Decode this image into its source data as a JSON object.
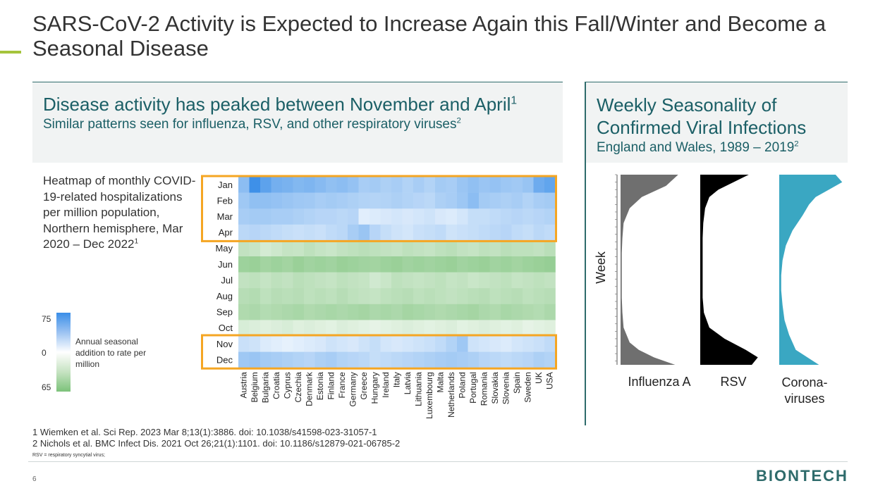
{
  "title": "SARS-CoV-2 Activity is Expected to Increase Again this Fall/Winter and Become a Seasonal Disease",
  "left_panel": {
    "heading": "Disease activity has peaked between November and April",
    "heading_sup": "1",
    "subheading": "Similar patterns seen for influenza, RSV, and other respiratory viruses",
    "subheading_sup": "2"
  },
  "right_panel": {
    "heading": "Weekly Seasonality of Confirmed Viral Infections",
    "subheading": "England and Wales, 1989 – 2019",
    "subheading_sup": "2"
  },
  "heatmap_description": {
    "text": "Heatmap of monthly COVID-19-related hospitalizations per million population, Northern hemisphere, Mar 2020 – Dec 2022",
    "sup": "1"
  },
  "legend": {
    "max_label": "75",
    "mid_label": "0",
    "min_label": "65",
    "label": "Annual seasonal addition to rate per million",
    "colors": {
      "high": "#3a8ee8",
      "mid": "#ffffff",
      "low": "#7cc27a"
    }
  },
  "chart_data": [
    {
      "type": "heatmap",
      "rows": [
        "Jan",
        "Feb",
        "Mar",
        "Apr",
        "May",
        "Jun",
        "Jul",
        "Aug",
        "Sep",
        "Oct",
        "Nov",
        "Dec"
      ],
      "columns": [
        "Austria",
        "Belgium",
        "Bulgaria",
        "Croatia",
        "Cyprus",
        "Czechia",
        "Denmark",
        "Estonia",
        "Finland",
        "France",
        "Germany",
        "Greece",
        "Hungary",
        "Ireland",
        "Italy",
        "Latvia",
        "Lithuania",
        "Luxembourg",
        "Malta",
        "Netherlands",
        "Poland",
        "Portugal",
        "Romania",
        "Slovakia",
        "Slovenia",
        "Spain",
        "Sweden",
        "UK",
        "USA"
      ],
      "values": [
        [
          42,
          75,
          62,
          52,
          50,
          46,
          48,
          44,
          40,
          42,
          38,
          30,
          32,
          28,
          30,
          26,
          30,
          26,
          32,
          30,
          36,
          40,
          36,
          38,
          35,
          33,
          37,
          55,
          60
        ],
        [
          34,
          40,
          40,
          38,
          36,
          34,
          33,
          30,
          32,
          30,
          28,
          26,
          25,
          26,
          28,
          26,
          24,
          22,
          28,
          30,
          35,
          42,
          32,
          30,
          28,
          30,
          26,
          30,
          32
        ],
        [
          30,
          32,
          32,
          30,
          30,
          28,
          26,
          24,
          24,
          22,
          24,
          6,
          8,
          10,
          12,
          10,
          12,
          14,
          10,
          8,
          12,
          18,
          18,
          20,
          22,
          24,
          22,
          24,
          26
        ],
        [
          22,
          24,
          22,
          20,
          18,
          16,
          18,
          16,
          20,
          22,
          30,
          36,
          24,
          18,
          14,
          12,
          16,
          18,
          20,
          14,
          16,
          18,
          20,
          22,
          24,
          20,
          18,
          22,
          20
        ],
        [
          -28,
          -25,
          -18,
          -22,
          -26,
          -25,
          -30,
          -26,
          -24,
          -28,
          -30,
          -32,
          -30,
          -28,
          -26,
          -30,
          -28,
          -26,
          -30,
          -32,
          -28,
          -26,
          -30,
          -28,
          -32,
          -30,
          -30,
          -28,
          -32
        ],
        [
          -48,
          -50,
          -45,
          -48,
          -45,
          -50,
          -46,
          -48,
          -46,
          -50,
          -48,
          -46,
          -45,
          -48,
          -50,
          -46,
          -48,
          -46,
          -48,
          -50,
          -46,
          -48,
          -50,
          -46,
          -48,
          -45,
          -48,
          -50,
          -52
        ],
        [
          -28,
          -30,
          -26,
          -30,
          -28,
          -32,
          -30,
          -28,
          -26,
          -30,
          -28,
          -26,
          -20,
          -24,
          -30,
          -28,
          -26,
          -28,
          -30,
          -26,
          -28,
          -24,
          -26,
          -28,
          -30,
          -26,
          -28,
          -30,
          -28
        ],
        [
          -34,
          -36,
          -30,
          -34,
          -32,
          -34,
          -30,
          -32,
          -30,
          -34,
          -30,
          -28,
          -26,
          -30,
          -32,
          -34,
          -30,
          -32,
          -30,
          -28,
          -30,
          -32,
          -34,
          -30,
          -32,
          -34,
          -30,
          -32,
          -34
        ],
        [
          -38,
          -40,
          -36,
          -38,
          -40,
          -42,
          -38,
          -40,
          -42,
          -40,
          -42,
          -44,
          -40,
          -42,
          -40,
          -44,
          -42,
          -40,
          -38,
          -40,
          -42,
          -44,
          -40,
          -38,
          -42,
          -40,
          -38,
          -36,
          -40
        ],
        [
          -16,
          -14,
          -12,
          -14,
          -16,
          -12,
          -14,
          -12,
          -10,
          -14,
          -12,
          -10,
          -8,
          -10,
          -12,
          -14,
          -12,
          -10,
          -12,
          -14,
          -10,
          -12,
          -14,
          -12,
          -10,
          -12,
          -8,
          -10,
          -12
        ],
        [
          16,
          14,
          8,
          6,
          4,
          6,
          8,
          10,
          14,
          12,
          10,
          14,
          18,
          12,
          10,
          12,
          14,
          16,
          20,
          26,
          34,
          14,
          12,
          10,
          8,
          12,
          14,
          16,
          20
        ],
        [
          34,
          36,
          32,
          30,
          28,
          26,
          24,
          28,
          30,
          26,
          24,
          22,
          18,
          20,
          22,
          24,
          26,
          28,
          30,
          32,
          30,
          28,
          24,
          22,
          20,
          22,
          24,
          28,
          26
        ]
      ],
      "highlighted_months": [
        "Nov",
        "Dec",
        "Jan",
        "Feb",
        "Mar",
        "Apr"
      ],
      "colors": {
        "high": "#3a8ee8",
        "mid": "#ffffff",
        "low": "#7cc27a",
        "highlight": "#f5a623"
      }
    },
    {
      "type": "area",
      "ylabel": "Week",
      "week_range": [
        1,
        52
      ],
      "series": [
        {
          "name": "Influenza A",
          "color": "#6f6f6f",
          "weeks": [
            1,
            4,
            7,
            10,
            14,
            18,
            22,
            26,
            30,
            34,
            38,
            42,
            46,
            48,
            50,
            52
          ],
          "values": [
            0.95,
            0.75,
            0.35,
            0.15,
            0.05,
            0.03,
            0.02,
            0.02,
            0.02,
            0.02,
            0.03,
            0.05,
            0.15,
            0.3,
            0.55,
            0.9
          ]
        },
        {
          "name": "RSV",
          "color": "#000000",
          "weeks": [
            1,
            3,
            5,
            7,
            10,
            14,
            18,
            22,
            26,
            30,
            34,
            38,
            42,
            45,
            48,
            50,
            52
          ],
          "values": [
            0.8,
            0.55,
            0.3,
            0.15,
            0.08,
            0.05,
            0.04,
            0.04,
            0.04,
            0.04,
            0.04,
            0.06,
            0.15,
            0.4,
            0.75,
            0.95,
            0.85
          ]
        },
        {
          "name": "Corona-viruses",
          "color": "#3aa7c2",
          "weeks": [
            1,
            3,
            5,
            7,
            9,
            12,
            16,
            20,
            24,
            28,
            32,
            36,
            40,
            44,
            48,
            52
          ],
          "values": [
            0.85,
            0.95,
            0.75,
            0.55,
            0.45,
            0.35,
            0.2,
            0.1,
            0.05,
            0.03,
            0.03,
            0.05,
            0.08,
            0.15,
            0.25,
            0.6
          ]
        }
      ]
    }
  ],
  "season_labels": [
    "Influenza A",
    "RSV",
    "Corona-viruses"
  ],
  "footnotes": [
    "1 Wiemken et al. Sci Rep. 2023 Mar 8;13(1):3886. doi: 10.1038/s41598-023-31057-1",
    "2 Nichols et al. BMC Infect Dis. 2021 Oct 26;21(1):1101. doi: 10.1186/s12879-021-06785-2"
  ],
  "abbreviation_note": "RSV = respiratory syncytial virus;",
  "page_number": "6",
  "logo_text": "BIONTECH"
}
